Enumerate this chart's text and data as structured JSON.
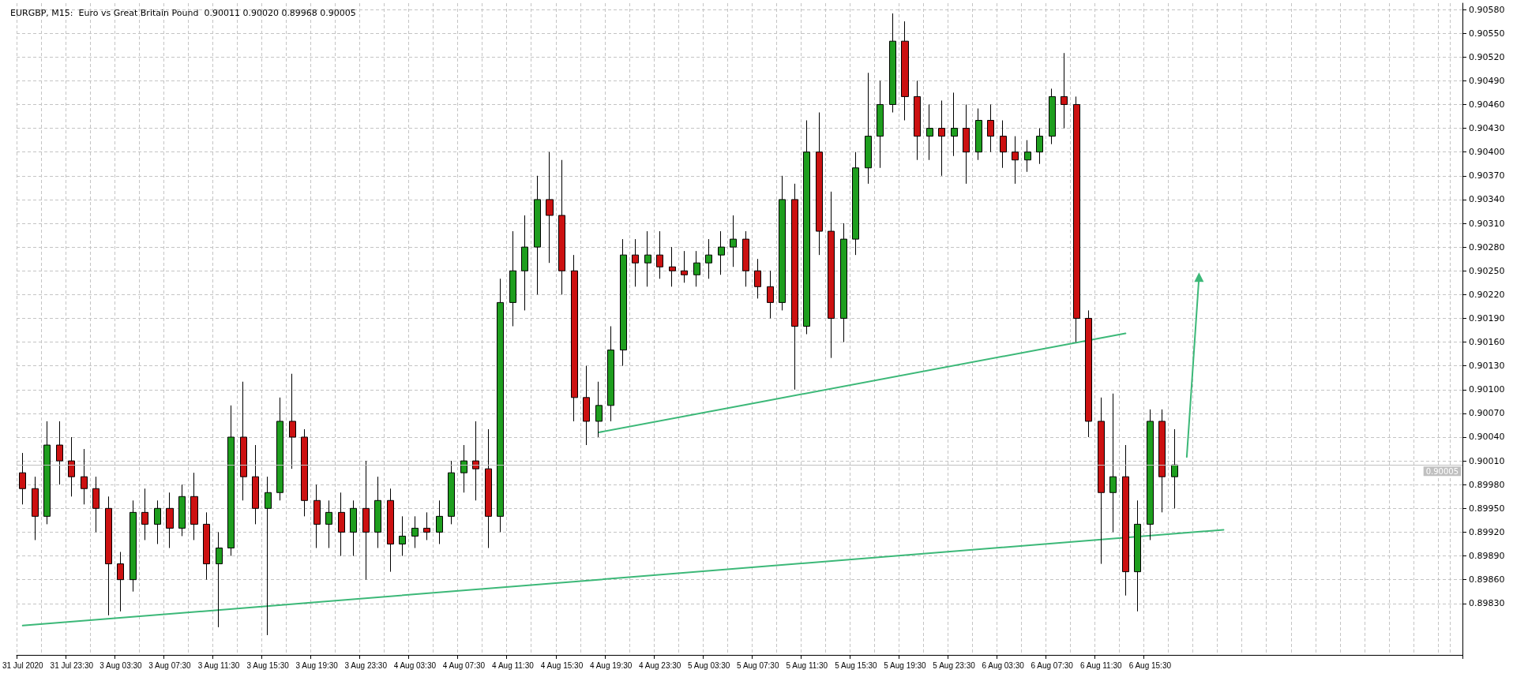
{
  "chart_data": {
    "type": "candlestick",
    "title": "EURGBP, M15:  Euro vs Great Britain Pound  0.90011 0.90020 0.89968 0.90005",
    "categories": [
      "31 Jul 2020",
      null,
      null,
      null,
      "31 Jul 23:30",
      null,
      null,
      null,
      "3 Aug 03:30",
      null,
      null,
      null,
      "3 Aug 07:30",
      null,
      null,
      null,
      "3 Aug 11:30",
      null,
      null,
      null,
      "3 Aug 15:30",
      null,
      null,
      null,
      "3 Aug 19:30",
      null,
      null,
      null,
      "3 Aug 23:30",
      null,
      null,
      null,
      "4 Aug 03:30",
      null,
      null,
      null,
      "4 Aug 07:30",
      null,
      null,
      null,
      "4 Aug 11:30",
      null,
      null,
      null,
      "4 Aug 15:30",
      null,
      null,
      null,
      "4 Aug 19:30",
      null,
      null,
      null,
      "4 Aug 23:30",
      null,
      null,
      null,
      "5 Aug 03:30",
      null,
      null,
      null,
      "5 Aug 07:30",
      null,
      null,
      null,
      "5 Aug 11:30",
      null,
      null,
      null,
      "5 Aug 15:30",
      null,
      null,
      null,
      "5 Aug 19:30",
      null,
      null,
      null,
      "5 Aug 23:30",
      null,
      null,
      null,
      "6 Aug 03:30",
      null,
      null,
      null,
      "6 Aug 07:30",
      null,
      null,
      null,
      "6 Aug 11:30",
      null,
      null,
      null,
      "6 Aug 15:30",
      null,
      null,
      null,
      null,
      null,
      null,
      null,
      null,
      null,
      null,
      null,
      null,
      null,
      null,
      null,
      null,
      null,
      null,
      null,
      null,
      null,
      null,
      null,
      null,
      null
    ],
    "ohlc": [
      [
        0.89995,
        0.9002,
        0.89955,
        0.89975
      ],
      [
        0.89975,
        0.8999,
        0.8991,
        0.8994
      ],
      [
        0.8994,
        0.9006,
        0.8993,
        0.9003
      ],
      [
        0.9003,
        0.9006,
        0.8998,
        0.9001
      ],
      [
        0.9001,
        0.9004,
        0.89965,
        0.8999
      ],
      [
        0.8999,
        0.90025,
        0.89955,
        0.89975
      ],
      [
        0.89975,
        0.8999,
        0.8992,
        0.8995
      ],
      [
        0.8995,
        0.89965,
        0.89815,
        0.8988
      ],
      [
        0.8988,
        0.89895,
        0.8982,
        0.8986
      ],
      [
        0.8986,
        0.8996,
        0.89845,
        0.89945
      ],
      [
        0.89945,
        0.89975,
        0.8991,
        0.8993
      ],
      [
        0.8993,
        0.8996,
        0.89905,
        0.8995
      ],
      [
        0.8995,
        0.8997,
        0.899,
        0.89925
      ],
      [
        0.89925,
        0.8998,
        0.89915,
        0.89965
      ],
      [
        0.89965,
        0.89995,
        0.8991,
        0.8993
      ],
      [
        0.8993,
        0.89945,
        0.8986,
        0.8988
      ],
      [
        0.8988,
        0.8992,
        0.898,
        0.899
      ],
      [
        0.899,
        0.9008,
        0.8989,
        0.9004
      ],
      [
        0.9004,
        0.9011,
        0.8996,
        0.8999
      ],
      [
        0.8999,
        0.9003,
        0.8993,
        0.8995
      ],
      [
        0.8995,
        0.8999,
        0.8979,
        0.8997
      ],
      [
        0.8997,
        0.9009,
        0.8996,
        0.9006
      ],
      [
        0.9006,
        0.9012,
        0.9,
        0.9004
      ],
      [
        0.9004,
        0.9005,
        0.8994,
        0.8996
      ],
      [
        0.8996,
        0.8998,
        0.899,
        0.8993
      ],
      [
        0.8993,
        0.8996,
        0.899,
        0.89945
      ],
      [
        0.89945,
        0.8997,
        0.8989,
        0.8992
      ],
      [
        0.8992,
        0.8996,
        0.8989,
        0.8995
      ],
      [
        0.8995,
        0.9001,
        0.8986,
        0.8992
      ],
      [
        0.8992,
        0.8999,
        0.899,
        0.8996
      ],
      [
        0.8996,
        0.89975,
        0.8987,
        0.89905
      ],
      [
        0.89905,
        0.8994,
        0.8989,
        0.89915
      ],
      [
        0.89915,
        0.8994,
        0.899,
        0.89925
      ],
      [
        0.89925,
        0.89945,
        0.8991,
        0.8992
      ],
      [
        0.8992,
        0.8996,
        0.89905,
        0.8994
      ],
      [
        0.8994,
        0.9001,
        0.8993,
        0.89995
      ],
      [
        0.89995,
        0.9003,
        0.8997,
        0.9001
      ],
      [
        0.9001,
        0.9006,
        0.8996,
        0.9
      ],
      [
        0.9,
        0.9005,
        0.899,
        0.8994
      ],
      [
        0.8994,
        0.9024,
        0.8992,
        0.9021
      ],
      [
        0.9021,
        0.903,
        0.9018,
        0.9025
      ],
      [
        0.9025,
        0.9032,
        0.902,
        0.9028
      ],
      [
        0.9028,
        0.9037,
        0.9022,
        0.9034
      ],
      [
        0.9034,
        0.904,
        0.9026,
        0.9032
      ],
      [
        0.9032,
        0.9039,
        0.9022,
        0.9025
      ],
      [
        0.9025,
        0.9027,
        0.9006,
        0.9009
      ],
      [
        0.9009,
        0.9013,
        0.9003,
        0.9006
      ],
      [
        0.9006,
        0.9011,
        0.9004,
        0.9008
      ],
      [
        0.9008,
        0.9018,
        0.9006,
        0.9015
      ],
      [
        0.9015,
        0.9029,
        0.9013,
        0.9027
      ],
      [
        0.9027,
        0.9029,
        0.9023,
        0.9026
      ],
      [
        0.9026,
        0.903,
        0.9023,
        0.9027
      ],
      [
        0.9027,
        0.903,
        0.9024,
        0.90255
      ],
      [
        0.90255,
        0.9028,
        0.9023,
        0.9025
      ],
      [
        0.9025,
        0.90275,
        0.90235,
        0.90245
      ],
      [
        0.90245,
        0.90275,
        0.9023,
        0.9026
      ],
      [
        0.9026,
        0.9029,
        0.9024,
        0.9027
      ],
      [
        0.9027,
        0.903,
        0.90245,
        0.9028
      ],
      [
        0.9028,
        0.9032,
        0.90255,
        0.9029
      ],
      [
        0.9029,
        0.903,
        0.9023,
        0.9025
      ],
      [
        0.9025,
        0.90265,
        0.90215,
        0.9023
      ],
      [
        0.9023,
        0.9025,
        0.9019,
        0.9021
      ],
      [
        0.9021,
        0.9037,
        0.902,
        0.9034
      ],
      [
        0.9034,
        0.9036,
        0.901,
        0.9018
      ],
      [
        0.9018,
        0.9044,
        0.9017,
        0.904
      ],
      [
        0.904,
        0.9045,
        0.9027,
        0.903
      ],
      [
        0.903,
        0.9035,
        0.9014,
        0.9019
      ],
      [
        0.9019,
        0.9031,
        0.9016,
        0.9029
      ],
      [
        0.9029,
        0.904,
        0.9027,
        0.9038
      ],
      [
        0.9038,
        0.905,
        0.9036,
        0.9042
      ],
      [
        0.9042,
        0.9049,
        0.9038,
        0.9046
      ],
      [
        0.9046,
        0.90575,
        0.9045,
        0.9054
      ],
      [
        0.9054,
        0.90565,
        0.9044,
        0.9047
      ],
      [
        0.9047,
        0.9049,
        0.9039,
        0.9042
      ],
      [
        0.9042,
        0.9046,
        0.9039,
        0.9043
      ],
      [
        0.9043,
        0.90465,
        0.9037,
        0.9042
      ],
      [
        0.9042,
        0.90475,
        0.90395,
        0.9043
      ],
      [
        0.9043,
        0.9046,
        0.9036,
        0.904
      ],
      [
        0.904,
        0.90455,
        0.9039,
        0.9044
      ],
      [
        0.9044,
        0.9046,
        0.904,
        0.9042
      ],
      [
        0.9042,
        0.9044,
        0.9038,
        0.904
      ],
      [
        0.904,
        0.9042,
        0.9036,
        0.9039
      ],
      [
        0.9039,
        0.90415,
        0.90375,
        0.904
      ],
      [
        0.904,
        0.9043,
        0.90385,
        0.9042
      ],
      [
        0.9042,
        0.9048,
        0.9041,
        0.9047
      ],
      [
        0.9047,
        0.90525,
        0.9043,
        0.9046
      ],
      [
        0.9046,
        0.9047,
        0.9016,
        0.9019
      ],
      [
        0.9019,
        0.902,
        0.9004,
        0.9006
      ],
      [
        0.9006,
        0.9009,
        0.8988,
        0.8997
      ],
      [
        0.8997,
        0.90095,
        0.8992,
        0.8999
      ],
      [
        0.8999,
        0.9003,
        0.8984,
        0.8987
      ],
      [
        0.8987,
        0.8996,
        0.8982,
        0.8993
      ],
      [
        0.8993,
        0.90075,
        0.8991,
        0.9006
      ],
      [
        0.9006,
        0.90075,
        0.89945,
        0.8999
      ],
      [
        0.8999,
        0.9005,
        0.8995,
        0.90005
      ],
      null,
      null,
      null,
      null,
      null,
      null,
      null,
      null,
      null,
      null,
      null,
      null,
      null,
      null,
      null,
      null,
      null,
      null,
      null,
      null,
      null,
      null,
      null
    ],
    "colors": [
      "#cc1111",
      "#cc1111",
      "#1e9e1e",
      "#cc1111",
      "#cc1111",
      "#cc1111",
      "#cc1111",
      "#cc1111",
      "#cc1111",
      "#1e9e1e",
      "#cc1111",
      "#1e9e1e",
      "#cc1111",
      "#1e9e1e",
      "#cc1111",
      "#cc1111",
      "#1e9e1e",
      "#1e9e1e",
      "#cc1111",
      "#cc1111",
      "#1e9e1e",
      "#1e9e1e",
      "#cc1111",
      "#cc1111",
      "#cc1111",
      "#1e9e1e",
      "#cc1111",
      "#1e9e1e",
      "#cc1111",
      "#1e9e1e",
      "#cc1111",
      "#1e9e1e",
      "#1e9e1e",
      "#cc1111",
      "#1e9e1e",
      "#1e9e1e",
      "#1e9e1e",
      "#cc1111",
      "#cc1111",
      "#1e9e1e",
      "#1e9e1e",
      "#1e9e1e",
      "#1e9e1e",
      "#cc1111",
      "#cc1111",
      "#cc1111",
      "#cc1111",
      "#1e9e1e",
      "#1e9e1e",
      "#1e9e1e",
      "#cc1111",
      "#1e9e1e",
      "#cc1111",
      "#cc1111",
      "#cc1111",
      "#1e9e1e",
      "#1e9e1e",
      "#1e9e1e",
      "#1e9e1e",
      "#cc1111",
      "#cc1111",
      "#cc1111",
      "#1e9e1e",
      "#cc1111",
      "#1e9e1e",
      "#cc1111",
      "#cc1111",
      "#1e9e1e",
      "#1e9e1e",
      "#1e9e1e",
      "#1e9e1e",
      "#1e9e1e",
      "#cc1111",
      "#cc1111",
      "#1e9e1e",
      "#cc1111",
      "#1e9e1e",
      "#cc1111",
      "#1e9e1e",
      "#cc1111",
      "#cc1111",
      "#cc1111",
      "#1e9e1e",
      "#1e9e1e",
      "#1e9e1e",
      "#cc1111",
      "#cc1111",
      "#cc1111",
      "#cc1111",
      "#1e9e1e",
      "#cc1111",
      "#1e9e1e",
      "#1e9e1e",
      "#cc1111",
      "#1e9e1e",
      null,
      null,
      null,
      null,
      null,
      null,
      null,
      null,
      null,
      null,
      null,
      null,
      null,
      null,
      null,
      null,
      null,
      null,
      null,
      null,
      null,
      null,
      null
    ],
    "series": [
      {
        "type": "line",
        "color": "#3cb878",
        "values": [
          0.89802,
          null,
          null,
          null,
          null,
          null,
          null,
          null,
          null,
          null,
          null,
          null,
          null,
          null,
          null,
          null,
          null,
          null,
          null,
          null,
          null,
          null,
          null,
          null,
          null,
          null,
          null,
          null,
          null,
          null,
          null,
          null,
          null,
          null,
          null,
          null,
          null,
          null,
          null,
          null,
          null,
          null,
          null,
          null,
          null,
          null,
          null,
          null,
          null,
          null,
          null,
          null,
          null,
          null,
          null,
          null,
          null,
          null,
          null,
          null,
          null,
          null,
          null,
          null,
          null,
          null,
          null,
          null,
          null,
          null,
          null,
          null,
          null,
          null,
          null,
          null,
          null,
          null,
          null,
          null,
          null,
          null,
          null,
          null,
          null,
          null,
          null,
          null,
          null,
          null,
          null,
          null,
          null,
          null,
          null,
          null,
          null,
          null,
          0.89923,
          null,
          null,
          null,
          null,
          null,
          null,
          null,
          null,
          null,
          null,
          null,
          null,
          null,
          null,
          null,
          null,
          null,
          null,
          null
        ]
      },
      {
        "type": "line",
        "color": "#3cb878",
        "values": [
          null,
          null,
          null,
          null,
          null,
          null,
          null,
          null,
          null,
          null,
          null,
          null,
          null,
          null,
          null,
          null,
          null,
          null,
          null,
          null,
          null,
          null,
          null,
          null,
          null,
          null,
          null,
          null,
          null,
          null,
          null,
          null,
          null,
          null,
          null,
          null,
          null,
          null,
          null,
          null,
          null,
          null,
          null,
          null,
          null,
          null,
          null,
          0.90046,
          null,
          null,
          null,
          null,
          null,
          null,
          null,
          null,
          null,
          null,
          null,
          null,
          null,
          null,
          null,
          null,
          null,
          null,
          null,
          null,
          null,
          null,
          null,
          null,
          null,
          null,
          null,
          null,
          null,
          null,
          null,
          null,
          null,
          null,
          null,
          null,
          null,
          null,
          null,
          null,
          null,
          null,
          0.90171,
          null,
          null,
          null,
          null,
          null,
          null,
          null,
          null,
          null,
          null,
          null,
          null,
          null,
          null,
          null,
          null,
          null,
          null,
          null,
          null,
          null,
          null,
          null,
          null,
          null,
          null,
          null
        ]
      },
      {
        "type": "line",
        "color": "#3cb878",
        "marker": "triangle",
        "values": [
          null,
          null,
          null,
          null,
          null,
          null,
          null,
          null,
          null,
          null,
          null,
          null,
          null,
          null,
          null,
          null,
          null,
          null,
          null,
          null,
          null,
          null,
          null,
          null,
          null,
          null,
          null,
          null,
          null,
          null,
          null,
          null,
          null,
          null,
          null,
          null,
          null,
          null,
          null,
          null,
          null,
          null,
          null,
          null,
          null,
          null,
          null,
          null,
          null,
          null,
          null,
          null,
          null,
          null,
          null,
          null,
          null,
          null,
          null,
          null,
          null,
          null,
          null,
          null,
          null,
          null,
          null,
          null,
          null,
          null,
          null,
          null,
          null,
          null,
          null,
          null,
          null,
          null,
          null,
          null,
          null,
          null,
          null,
          null,
          null,
          null,
          null,
          null,
          null,
          null,
          null,
          null,
          null,
          null,
          null,
          0.90015,
          0.90242,
          null,
          null,
          null,
          null,
          null,
          null,
          null,
          null,
          null,
          null,
          null,
          null,
          null,
          null,
          null,
          null,
          null,
          null,
          null,
          null,
          null
        ]
      }
    ],
    "ylim": [
      0.89765,
      0.90588
    ],
    "yticks": [
      {
        "value": 0.8983,
        "label": "0.89830"
      },
      {
        "value": 0.8986,
        "label": "0.89860"
      },
      {
        "value": 0.8989,
        "label": "0.89890"
      },
      {
        "value": 0.8992,
        "label": "0.89920"
      },
      {
        "value": 0.8995,
        "label": "0.89950"
      },
      {
        "value": 0.8998,
        "label": "0.89980"
      },
      {
        "value": 0.9001,
        "label": "0.90010"
      },
      {
        "value": 0.9004,
        "label": "0.90040"
      },
      {
        "value": 0.9007,
        "label": "0.90070"
      },
      {
        "value": 0.901,
        "label": "0.90100"
      },
      {
        "value": 0.9013,
        "label": "0.90130"
      },
      {
        "value": 0.9016,
        "label": "0.90160"
      },
      {
        "value": 0.9019,
        "label": "0.90190"
      },
      {
        "value": 0.9022,
        "label": "0.90220"
      },
      {
        "value": 0.9025,
        "label": "0.90250"
      },
      {
        "value": 0.9028,
        "label": "0.90280"
      },
      {
        "value": 0.9031,
        "label": "0.90310"
      },
      {
        "value": 0.9034,
        "label": "0.90340"
      },
      {
        "value": 0.9037,
        "label": "0.90370"
      },
      {
        "value": 0.904,
        "label": "0.90400"
      },
      {
        "value": 0.9043,
        "label": "0.90430"
      },
      {
        "value": 0.9046,
        "label": "0.90460"
      },
      {
        "value": 0.9049,
        "label": "0.90490"
      },
      {
        "value": 0.9052,
        "label": "0.90520"
      },
      {
        "value": 0.9055,
        "label": "0.90550"
      },
      {
        "value": 0.9058,
        "label": "0.90580"
      }
    ],
    "ref_lines": [
      {
        "axis": "y",
        "value": 0.90005,
        "label": "0.90005",
        "color": "#c0c0c0"
      }
    ],
    "grid": true
  }
}
